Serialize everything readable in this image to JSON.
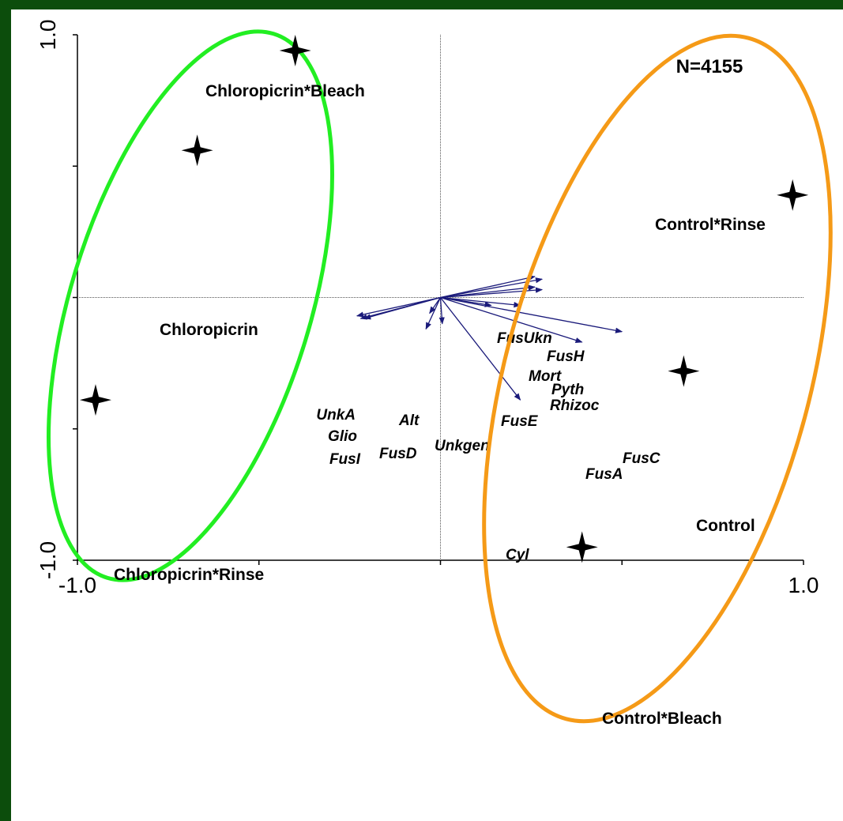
{
  "chart_data": {
    "type": "scatter",
    "subtype": "ordination-biplot",
    "title": "",
    "xlabel": "",
    "ylabel": "",
    "xlim": [
      -1.0,
      1.0
    ],
    "ylim": [
      -1.0,
      1.0
    ],
    "x_tick_labels": [
      "-1.0",
      "1.0"
    ],
    "y_tick_labels": [
      "1.0",
      "-1.0"
    ],
    "annotation": "N=4155",
    "axis_lines": "dotted zero lines",
    "grid": false,
    "legend": "none",
    "colors": {
      "background": "#0c4d0c",
      "chloropicrin_group": "#22ee22",
      "control_group": "#f59a17",
      "vectors": "#1a1a7a",
      "points": "#000000"
    },
    "samples": [
      {
        "label": "Chloropicrin*Bleach",
        "x": -0.4,
        "y": 0.94
      },
      {
        "label": "Chloropicrin",
        "x": -0.67,
        "y": 0.56
      },
      {
        "label": "Chloropicrin*Rinse",
        "x": -0.95,
        "y": -0.39
      },
      {
        "label": "Control*Rinse",
        "x": 0.97,
        "y": 0.39
      },
      {
        "label": "Control",
        "x": 0.67,
        "y": -0.28
      },
      {
        "label": "Control*Bleach",
        "x": 0.39,
        "y": -0.95
      }
    ],
    "vectors": [
      {
        "label": "FusUkn",
        "x": 0.26,
        "y": 0.08
      },
      {
        "label": "FusH",
        "x": 0.28,
        "y": 0.07
      },
      {
        "label": "Mort",
        "x": 0.26,
        "y": 0.04
      },
      {
        "label": "Pyth",
        "x": 0.28,
        "y": 0.03
      },
      {
        "label": "Rhizoc",
        "x": 0.22,
        "y": -0.03
      },
      {
        "label": "FusE",
        "x": 0.14,
        "y": -0.03
      },
      {
        "label": "FusC",
        "x": 0.5,
        "y": -0.13
      },
      {
        "label": "FusA",
        "x": 0.39,
        "y": -0.17
      },
      {
        "label": "Cyl",
        "x": 0.22,
        "y": -0.39
      },
      {
        "label": "Unkgen",
        "x": 0.005,
        "y": -0.1
      },
      {
        "label": "FusD",
        "x": -0.04,
        "y": -0.12
      },
      {
        "label": "Alt",
        "x": -0.03,
        "y": -0.06
      },
      {
        "label": "UnkA",
        "x": -0.23,
        "y": -0.07
      },
      {
        "label": "Glio",
        "x": -0.21,
        "y": -0.08
      },
      {
        "label": "FusI",
        "x": -0.22,
        "y": -0.08
      }
    ],
    "groups": [
      {
        "name": "",
        "color": "#22ee22",
        "members": [
          "Chloropicrin*Bleach",
          "Chloropicrin",
          "Chloropicrin*Rinse"
        ]
      },
      {
        "name": "",
        "color": "#f59a17",
        "members": [
          "Control*Rinse",
          "Control",
          "Control*Bleach"
        ]
      }
    ]
  }
}
